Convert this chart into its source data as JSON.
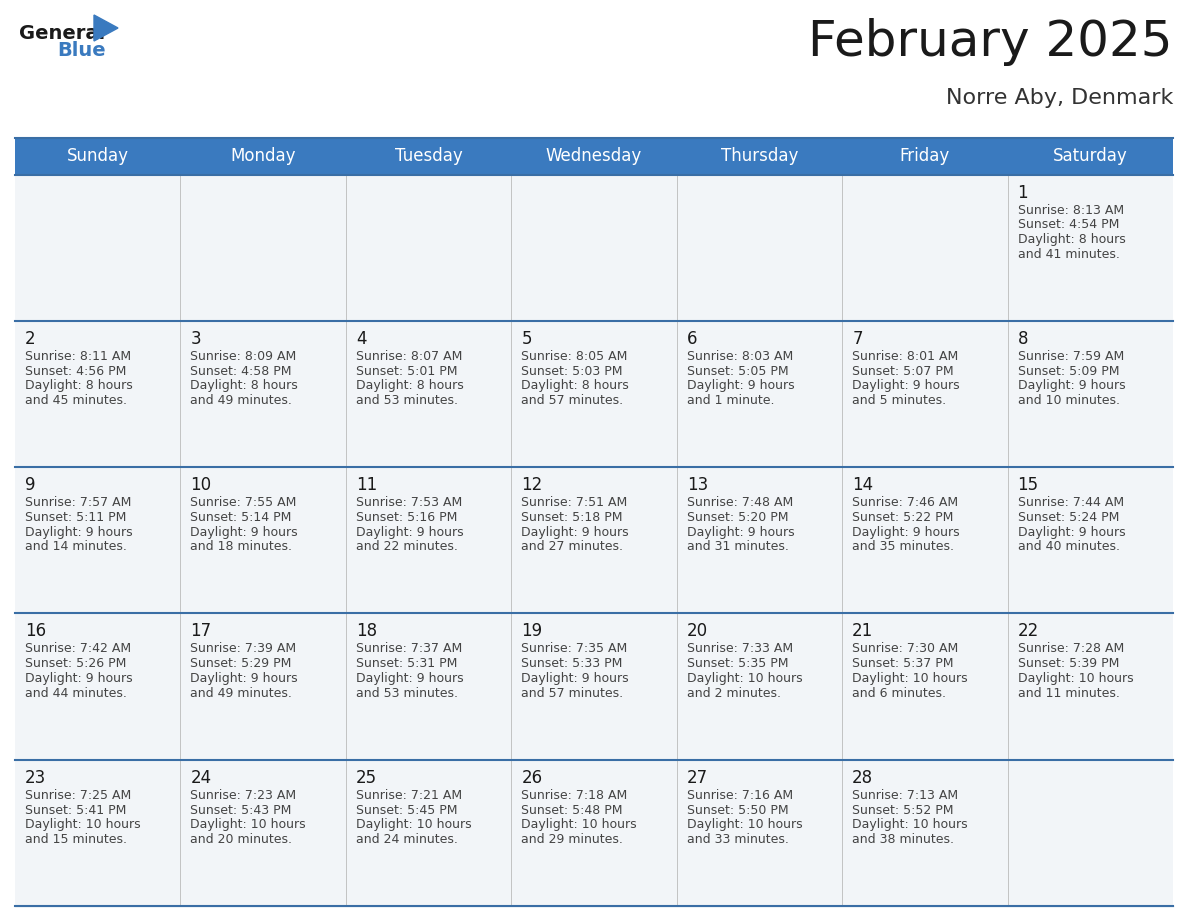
{
  "title": "February 2025",
  "subtitle": "Norre Aby, Denmark",
  "header_bg": "#3a7abf",
  "header_text": "#ffffff",
  "cell_bg": "#f2f5f8",
  "cell_bg_sat": "#eef1f5",
  "border_color": "#3a6ea5",
  "title_color": "#1a1a1a",
  "subtitle_color": "#333333",
  "day_num_color": "#1a1a1a",
  "cell_text_color": "#444444",
  "days_of_week": [
    "Sunday",
    "Monday",
    "Tuesday",
    "Wednesday",
    "Thursday",
    "Friday",
    "Saturday"
  ],
  "calendar": [
    [
      null,
      null,
      null,
      null,
      null,
      null,
      {
        "day": "1",
        "sunrise": "8:13 AM",
        "sunset": "4:54 PM",
        "daylight": "8 hours\nand 41 minutes."
      }
    ],
    [
      {
        "day": "2",
        "sunrise": "8:11 AM",
        "sunset": "4:56 PM",
        "daylight": "8 hours\nand 45 minutes."
      },
      {
        "day": "3",
        "sunrise": "8:09 AM",
        "sunset": "4:58 PM",
        "daylight": "8 hours\nand 49 minutes."
      },
      {
        "day": "4",
        "sunrise": "8:07 AM",
        "sunset": "5:01 PM",
        "daylight": "8 hours\nand 53 minutes."
      },
      {
        "day": "5",
        "sunrise": "8:05 AM",
        "sunset": "5:03 PM",
        "daylight": "8 hours\nand 57 minutes."
      },
      {
        "day": "6",
        "sunrise": "8:03 AM",
        "sunset": "5:05 PM",
        "daylight": "9 hours\nand 1 minute."
      },
      {
        "day": "7",
        "sunrise": "8:01 AM",
        "sunset": "5:07 PM",
        "daylight": "9 hours\nand 5 minutes."
      },
      {
        "day": "8",
        "sunrise": "7:59 AM",
        "sunset": "5:09 PM",
        "daylight": "9 hours\nand 10 minutes."
      }
    ],
    [
      {
        "day": "9",
        "sunrise": "7:57 AM",
        "sunset": "5:11 PM",
        "daylight": "9 hours\nand 14 minutes."
      },
      {
        "day": "10",
        "sunrise": "7:55 AM",
        "sunset": "5:14 PM",
        "daylight": "9 hours\nand 18 minutes."
      },
      {
        "day": "11",
        "sunrise": "7:53 AM",
        "sunset": "5:16 PM",
        "daylight": "9 hours\nand 22 minutes."
      },
      {
        "day": "12",
        "sunrise": "7:51 AM",
        "sunset": "5:18 PM",
        "daylight": "9 hours\nand 27 minutes."
      },
      {
        "day": "13",
        "sunrise": "7:48 AM",
        "sunset": "5:20 PM",
        "daylight": "9 hours\nand 31 minutes."
      },
      {
        "day": "14",
        "sunrise": "7:46 AM",
        "sunset": "5:22 PM",
        "daylight": "9 hours\nand 35 minutes."
      },
      {
        "day": "15",
        "sunrise": "7:44 AM",
        "sunset": "5:24 PM",
        "daylight": "9 hours\nand 40 minutes."
      }
    ],
    [
      {
        "day": "16",
        "sunrise": "7:42 AM",
        "sunset": "5:26 PM",
        "daylight": "9 hours\nand 44 minutes."
      },
      {
        "day": "17",
        "sunrise": "7:39 AM",
        "sunset": "5:29 PM",
        "daylight": "9 hours\nand 49 minutes."
      },
      {
        "day": "18",
        "sunrise": "7:37 AM",
        "sunset": "5:31 PM",
        "daylight": "9 hours\nand 53 minutes."
      },
      {
        "day": "19",
        "sunrise": "7:35 AM",
        "sunset": "5:33 PM",
        "daylight": "9 hours\nand 57 minutes."
      },
      {
        "day": "20",
        "sunrise": "7:33 AM",
        "sunset": "5:35 PM",
        "daylight": "10 hours\nand 2 minutes."
      },
      {
        "day": "21",
        "sunrise": "7:30 AM",
        "sunset": "5:37 PM",
        "daylight": "10 hours\nand 6 minutes."
      },
      {
        "day": "22",
        "sunrise": "7:28 AM",
        "sunset": "5:39 PM",
        "daylight": "10 hours\nand 11 minutes."
      }
    ],
    [
      {
        "day": "23",
        "sunrise": "7:25 AM",
        "sunset": "5:41 PM",
        "daylight": "10 hours\nand 15 minutes."
      },
      {
        "day": "24",
        "sunrise": "7:23 AM",
        "sunset": "5:43 PM",
        "daylight": "10 hours\nand 20 minutes."
      },
      {
        "day": "25",
        "sunrise": "7:21 AM",
        "sunset": "5:45 PM",
        "daylight": "10 hours\nand 24 minutes."
      },
      {
        "day": "26",
        "sunrise": "7:18 AM",
        "sunset": "5:48 PM",
        "daylight": "10 hours\nand 29 minutes."
      },
      {
        "day": "27",
        "sunrise": "7:16 AM",
        "sunset": "5:50 PM",
        "daylight": "10 hours\nand 33 minutes."
      },
      {
        "day": "28",
        "sunrise": "7:13 AM",
        "sunset": "5:52 PM",
        "daylight": "10 hours\nand 38 minutes."
      },
      null
    ]
  ]
}
